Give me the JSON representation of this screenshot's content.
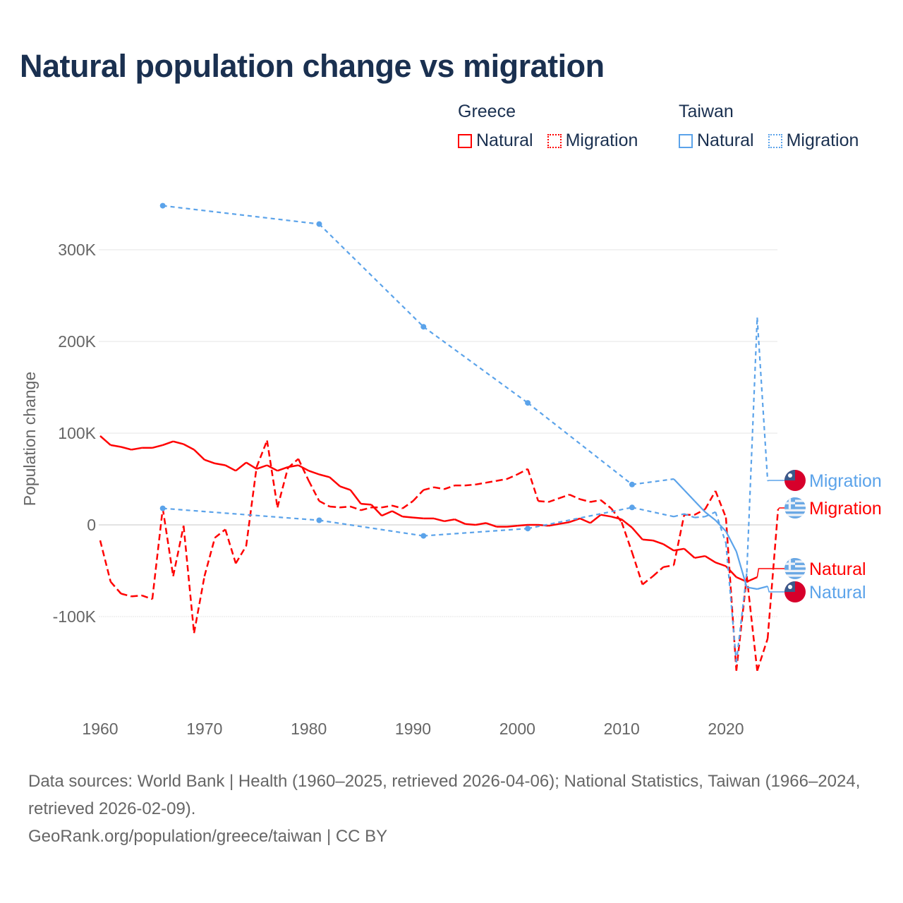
{
  "chart_data": {
    "type": "line",
    "title": "Natural population change vs migration",
    "ylabel": "Population change",
    "xlabel": "",
    "xlim": [
      1960,
      2025
    ],
    "ylim": [
      -180000,
      360000
    ],
    "x_ticks": [
      1960,
      1970,
      1980,
      1990,
      2000,
      2010,
      2020
    ],
    "y_ticks": [
      {
        "value": 300000,
        "label": "300K"
      },
      {
        "value": 200000,
        "label": "200K"
      },
      {
        "value": 100000,
        "label": "100K"
      },
      {
        "value": 0,
        "label": "0"
      },
      {
        "value": -100000,
        "label": "-100K"
      }
    ],
    "grid": true,
    "legend": {
      "placement": "top-right",
      "groups": [
        {
          "country": "Greece",
          "items": [
            "Natural",
            "Migration"
          ]
        },
        {
          "country": "Taiwan",
          "items": [
            "Natural",
            "Migration"
          ]
        }
      ]
    },
    "series": [
      {
        "name": "Greece Natural",
        "country": "Greece",
        "kind": "Natural",
        "color": "#ff0000",
        "style": "solid",
        "end_label": "Natural",
        "x": [
          1960,
          1961,
          1962,
          1963,
          1964,
          1965,
          1966,
          1967,
          1968,
          1969,
          1970,
          1971,
          1972,
          1973,
          1974,
          1975,
          1976,
          1977,
          1978,
          1979,
          1980,
          1981,
          1982,
          1983,
          1984,
          1985,
          1986,
          1987,
          1988,
          1989,
          1990,
          1991,
          1992,
          1993,
          1994,
          1995,
          1996,
          1997,
          1998,
          1999,
          2000,
          2001,
          2002,
          2003,
          2004,
          2005,
          2006,
          2007,
          2008,
          2009,
          2010,
          2011,
          2012,
          2013,
          2014,
          2015,
          2016,
          2017,
          2018,
          2019,
          2020,
          2021,
          2022,
          2023
        ],
        "y": [
          97000,
          87000,
          85000,
          82000,
          84000,
          84000,
          87000,
          91000,
          88000,
          82000,
          71000,
          67000,
          65000,
          59000,
          68000,
          61000,
          65000,
          59000,
          63000,
          65000,
          59000,
          55000,
          52000,
          42000,
          38000,
          23000,
          22000,
          10000,
          15000,
          9000,
          8000,
          7000,
          7000,
          4000,
          6000,
          1000,
          0,
          2000,
          -2000,
          -2000,
          -1000,
          0,
          0,
          -1000,
          1000,
          3000,
          7000,
          2000,
          11000,
          9000,
          6000,
          -3000,
          -16000,
          -17000,
          -21000,
          -28000,
          -26000,
          -36000,
          -34000,
          -41000,
          -45000,
          -57000,
          -62000,
          -57000
        ]
      },
      {
        "name": "Greece Migration",
        "country": "Greece",
        "kind": "Migration",
        "color": "#ff0000",
        "style": "dashed",
        "end_label": "Migration",
        "x": [
          1960,
          1961,
          1962,
          1963,
          1964,
          1965,
          1966,
          1967,
          1968,
          1969,
          1970,
          1971,
          1972,
          1973,
          1974,
          1975,
          1976,
          1977,
          1978,
          1979,
          1980,
          1981,
          1982,
          1983,
          1984,
          1985,
          1986,
          1987,
          1988,
          1989,
          1990,
          1991,
          1992,
          1993,
          1994,
          1995,
          1996,
          1997,
          1998,
          1999,
          2000,
          2001,
          2002,
          2003,
          2004,
          2005,
          2006,
          2007,
          2008,
          2009,
          2010,
          2011,
          2012,
          2013,
          2014,
          2015,
          2016,
          2017,
          2018,
          2019,
          2020,
          2021,
          2022,
          2023,
          2024,
          2025
        ],
        "y": [
          -17000,
          -62000,
          -75000,
          -78000,
          -77000,
          -81000,
          18000,
          -56000,
          -1000,
          -118000,
          -56000,
          -14000,
          -5000,
          -42000,
          -23000,
          63000,
          92000,
          19000,
          62000,
          72000,
          48000,
          26000,
          20000,
          19000,
          20000,
          16000,
          19000,
          19000,
          21000,
          18000,
          26000,
          38000,
          41000,
          39000,
          43000,
          43000,
          44000,
          46000,
          48000,
          50000,
          55000,
          61000,
          26000,
          25000,
          29000,
          33000,
          28000,
          25000,
          27000,
          18000,
          3000,
          -30000,
          -65000,
          -56000,
          -46000,
          -44000,
          11000,
          11000,
          17000,
          37000,
          8000,
          -159000,
          -56000,
          -159000,
          -124000,
          17000
        ]
      },
      {
        "name": "Taiwan Natural",
        "country": "Taiwan",
        "kind": "Natural",
        "color": "#5ba3ea",
        "style": "solid",
        "end_label": "Natural",
        "x": [
          1966,
          1981,
          1991,
          2001,
          2011,
          2015,
          2016,
          2017,
          2018,
          2019,
          2020,
          2021,
          2022,
          2023,
          2024
        ],
        "y": [
          348000,
          328000,
          216000,
          133000,
          44000,
          50000,
          38000,
          26000,
          14000,
          5000,
          -7000,
          -29000,
          -68000,
          -70000,
          -67000
        ]
      },
      {
        "name": "Taiwan Migration",
        "country": "Taiwan",
        "kind": "Migration",
        "color": "#5ba3ea",
        "style": "dashed",
        "end_label": "Migration",
        "x": [
          1966,
          1981,
          1991,
          2001,
          2011,
          2015,
          2016,
          2017,
          2018,
          2019,
          2020,
          2021,
          2022,
          2023,
          2024
        ],
        "y": [
          18000,
          5000,
          -12000,
          -4000,
          19000,
          9000,
          12000,
          8000,
          9000,
          14000,
          -20000,
          -150000,
          -52000,
          226000,
          48000
        ]
      }
    ]
  },
  "footer": {
    "sources": "Data sources: World Bank | Health (1960–2025, retrieved 2026-04-06); National Statistics, Taiwan (1966–2024, retrieved 2026-02-09).",
    "credit": "GeoRank.org/population/greece/taiwan | CC BY"
  },
  "colors": {
    "greece": "#ff0000",
    "taiwan": "#5ba3ea",
    "title": "#1a3050"
  }
}
